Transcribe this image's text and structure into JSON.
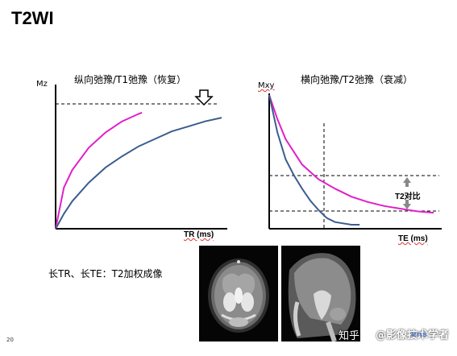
{
  "slide": {
    "title": "T2WI",
    "page_number": "20",
    "caption": "长TR、长TE：T2加权成像"
  },
  "chart_data": [
    {
      "type": "line",
      "title": "纵向弛豫/T1弛豫（恢复）",
      "ylabel": "Mz",
      "xlabel": "TR (ms)",
      "series": [
        {
          "color": "#e020c8",
          "points": [
            [
              0,
              0
            ],
            [
              0.05,
              0.33
            ],
            [
              0.1,
              0.47
            ],
            [
              0.2,
              0.65
            ],
            [
              0.3,
              0.77
            ],
            [
              0.4,
              0.86
            ],
            [
              0.5,
              0.92
            ],
            [
              0.52,
              0.93
            ]
          ]
        },
        {
          "color": "#3b5e8c",
          "points": [
            [
              0,
              0
            ],
            [
              0.05,
              0.12
            ],
            [
              0.1,
              0.22
            ],
            [
              0.2,
              0.37
            ],
            [
              0.3,
              0.49
            ],
            [
              0.4,
              0.58
            ],
            [
              0.5,
              0.66
            ],
            [
              0.6,
              0.72
            ],
            [
              0.7,
              0.78
            ],
            [
              0.8,
              0.82
            ],
            [
              0.9,
              0.86
            ],
            [
              1.0,
              0.89
            ]
          ]
        }
      ],
      "reference_line": 1.0,
      "annotation": "hollow-down-arrow"
    },
    {
      "type": "line",
      "title": "横向弛豫/T2弛豫（衰减）",
      "ylabel": "Mxy",
      "xlabel": "TE (ms)",
      "series": [
        {
          "color": "#e020c8",
          "points": [
            [
              0,
              1
            ],
            [
              0.05,
              0.82
            ],
            [
              0.1,
              0.67
            ],
            [
              0.2,
              0.48
            ],
            [
              0.3,
              0.37
            ],
            [
              0.4,
              0.3
            ],
            [
              0.5,
              0.24
            ],
            [
              0.6,
              0.2
            ],
            [
              0.7,
              0.17
            ],
            [
              0.8,
              0.15
            ],
            [
              0.9,
              0.13
            ],
            [
              1.0,
              0.12
            ]
          ]
        },
        {
          "color": "#3b5e8c",
          "points": [
            [
              0,
              1
            ],
            [
              0.05,
              0.72
            ],
            [
              0.1,
              0.52
            ],
            [
              0.15,
              0.4
            ],
            [
              0.2,
              0.3
            ],
            [
              0.25,
              0.21
            ],
            [
              0.3,
              0.14
            ],
            [
              0.35,
              0.08
            ],
            [
              0.4,
              0.05
            ],
            [
              0.5,
              0.03
            ],
            [
              0.55,
              0.03
            ]
          ]
        }
      ],
      "te_marker": 0.3,
      "contrast_label": "T2对比"
    }
  ],
  "images": [
    {
      "label": "axial T2WI brain"
    },
    {
      "label": "sagittal T2WI brain"
    }
  ],
  "watermark": {
    "text_cn": "知乎",
    "text_brand": "@影像技术学者",
    "text_ghost": "ens"
  }
}
